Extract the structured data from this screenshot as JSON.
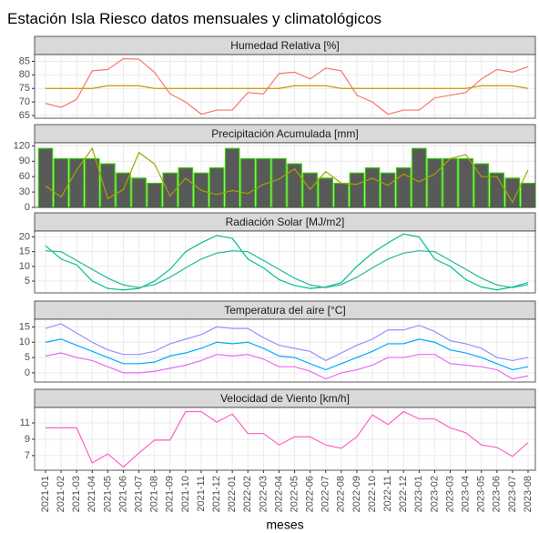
{
  "title": "Estación Isla Riesco datos mensuales y climatológicos",
  "xlabel": "meses",
  "categories": [
    "2021-01",
    "2021-02",
    "2021-03",
    "2021-04",
    "2021-05",
    "2021-06",
    "2021-07",
    "2021-08",
    "2021-09",
    "2021-10",
    "2021-11",
    "2021-12",
    "2022-01",
    "2022-02",
    "2022-03",
    "2022-04",
    "2022-05",
    "2022-06",
    "2022-07",
    "2022-08",
    "2022-09",
    "2022-10",
    "2022-11",
    "2022-12",
    "2023-01",
    "2023-02",
    "2023-03",
    "2023-04",
    "2023-05",
    "2023-06",
    "2023-07",
    "2023-08"
  ],
  "chart_data": [
    {
      "type": "line",
      "title": "Humedad Relativa [%]",
      "ylim": [
        64,
        87.5
      ],
      "yticks": [
        65,
        70,
        75,
        80,
        85
      ],
      "grid": true,
      "series": [
        {
          "color": "#F8766D",
          "values": [
            69.5,
            68,
            71,
            81.5,
            82,
            86,
            85.8,
            81,
            73,
            70,
            65.5,
            67,
            67,
            73.5,
            73,
            80.5,
            81,
            78.5,
            82.5,
            81.5,
            72.5,
            70,
            65.5,
            67,
            67,
            71.5,
            72.5,
            73.5,
            78.5,
            82,
            81,
            83
          ]
        },
        {
          "color": "#C49A00",
          "values": [
            75,
            75,
            75,
            75,
            76,
            76,
            76,
            75,
            75,
            75,
            75,
            75,
            75,
            75,
            75,
            75,
            76,
            76,
            76,
            75,
            75,
            75,
            75,
            75,
            75,
            75,
            75,
            75,
            76,
            76,
            76,
            75
          ]
        }
      ]
    },
    {
      "type": "bar",
      "title": "Precipitación Acumulada [mm]",
      "ylim": [
        0,
        126
      ],
      "yticks": [
        0,
        30,
        60,
        90,
        120
      ],
      "grid": true,
      "series": [
        {
          "type": "bar",
          "color": "#595959",
          "edgecolor": "#33CC00",
          "values": [
            115,
            95,
            95,
            95,
            85,
            67,
            57,
            47,
            67,
            77,
            67,
            77,
            115,
            95,
            95,
            95,
            85,
            67,
            57,
            47,
            67,
            77,
            67,
            77,
            115,
            95,
            95,
            95,
            85,
            67,
            57,
            47
          ]
        },
        {
          "type": "line",
          "color": "#A3A500",
          "values": [
            42,
            20,
            73,
            115,
            17,
            35,
            107,
            85,
            22,
            57,
            33,
            25,
            33,
            27,
            45,
            55,
            75,
            35,
            70,
            47,
            45,
            57,
            43,
            65,
            50,
            65,
            95,
            103,
            60,
            60,
            10,
            73
          ]
        }
      ]
    },
    {
      "type": "line",
      "title": "Radiación Solar [MJ/m2]",
      "ylim": [
        1,
        22
      ],
      "yticks": [
        5,
        10,
        15,
        20
      ],
      "grid": true,
      "series": [
        {
          "color": "#00C08B",
          "values": [
            17,
            12.5,
            10.5,
            5,
            2.5,
            2,
            2.5,
            5,
            9,
            15,
            18,
            20.5,
            19.5,
            12.5,
            9.5,
            5.5,
            3.5,
            2.5,
            3,
            4.5,
            10,
            14.5,
            18,
            21,
            20,
            12.5,
            10,
            5.5,
            3,
            2,
            3,
            4.5
          ]
        },
        {
          "color": "#1FB89A",
          "values": [
            15.3,
            15,
            12,
            9,
            6,
            3.7,
            2.8,
            3.8,
            6.3,
            9.5,
            12.5,
            14.5,
            15.3,
            15,
            12,
            9,
            6,
            3.7,
            2.8,
            3.8,
            6.3,
            9.5,
            12.5,
            14.5,
            15.3,
            15,
            12,
            9,
            6,
            3.7,
            2.8,
            3.8
          ]
        }
      ]
    },
    {
      "type": "line",
      "title": "Temperatura del aire [°C]",
      "ylim": [
        -3,
        17.5
      ],
      "yticks": [
        0,
        5,
        10,
        15
      ],
      "grid": true,
      "series": [
        {
          "color": "#9590FF",
          "values": [
            14.5,
            16,
            13,
            10,
            7.5,
            6,
            6,
            7,
            9.5,
            11,
            12.5,
            15,
            14.5,
            14.5,
            11.5,
            9,
            8,
            7,
            4,
            6.5,
            9,
            11,
            14,
            14,
            15.5,
            13.5,
            10.5,
            9.5,
            8,
            5,
            4,
            5
          ]
        },
        {
          "color": "#00A9FF",
          "values": [
            10,
            11,
            9,
            7,
            5,
            3,
            3,
            3.5,
            5.5,
            6.5,
            8,
            10,
            9.5,
            10,
            8,
            5.5,
            5,
            3,
            1,
            3,
            5,
            7,
            9.5,
            9.5,
            11,
            10,
            7.5,
            6.5,
            5,
            3,
            1,
            2
          ]
        },
        {
          "color": "#E76BF3",
          "values": [
            5.5,
            6.5,
            5,
            4,
            2,
            0,
            0,
            0.5,
            1.5,
            2.5,
            4,
            6,
            5.5,
            6,
            4.5,
            2,
            2,
            0.5,
            -2,
            0,
            1,
            2.5,
            5,
            5,
            6,
            6,
            3,
            2.5,
            2,
            1,
            -2,
            -1
          ]
        }
      ]
    },
    {
      "type": "line",
      "title": "Velocidad de Viento [km/h]",
      "ylim": [
        5.2,
        12.9
      ],
      "yticks": [
        7,
        9,
        11
      ],
      "grid": true,
      "series": [
        {
          "color": "#FF61C3",
          "values": [
            10.4,
            10.4,
            10.4,
            6.1,
            7.2,
            5.6,
            7.3,
            8.9,
            8.9,
            12.4,
            12.4,
            11.1,
            12.1,
            9.7,
            9.7,
            8.3,
            9.3,
            9.3,
            8.3,
            7.9,
            9.3,
            12,
            10.8,
            12.4,
            11.5,
            11.5,
            10.4,
            9.8,
            8.3,
            8,
            6.9,
            8.6
          ]
        }
      ]
    }
  ]
}
